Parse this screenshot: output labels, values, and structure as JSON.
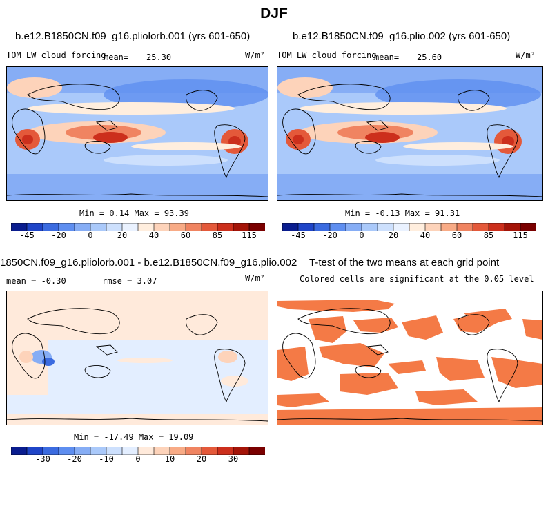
{
  "page_title": "DJF",
  "panels": [
    {
      "title": "b.e12.B1850CN.f09_g16.pliolorb.001 (yrs 601-650)",
      "variable": "TOM LW cloud forcing",
      "mean_label": "mean=",
      "mean_value": "25.30",
      "units": "W/m²",
      "minmax": "Min =   0.14 Max =  93.39"
    },
    {
      "title": "b.e12.B1850CN.f09_g16.plio.002 (yrs 601-650)",
      "variable": "TOM LW cloud forcing",
      "mean_label": "mean=",
      "mean_value": "25.60",
      "units": "W/m²",
      "minmax": "Min =  -0.13 Max =  91.31"
    },
    {
      "title": "1850CN.f09_g16.pliolorb.001 - b.e12.B1850CN.f09_g16.plio.002",
      "mean_text": "mean =  -0.30",
      "rmse_text": "rmse =    3.07",
      "units": "W/m²",
      "minmax": "Min = -17.49 Max =  19.09"
    },
    {
      "title": "T-test of the two means at each grid point",
      "subtitle": "Colored cells are significant at the 0.05 level"
    }
  ],
  "chart_data": [
    {
      "type": "heatmap",
      "title": "b.e12.B1850CN.f09_g16.pliolorb.001 (yrs 601-650)",
      "variable": "TOM LW cloud forcing",
      "units": "W/m2",
      "mean": 25.3,
      "min": 0.14,
      "max": 93.39,
      "colorbar_ticks": [
        "-45",
        "-20",
        "0",
        "20",
        "40",
        "60",
        "85",
        "115"
      ]
    },
    {
      "type": "heatmap",
      "title": "b.e12.B1850CN.f09_g16.plio.002 (yrs 601-650)",
      "variable": "TOM LW cloud forcing",
      "units": "W/m2",
      "mean": 25.6,
      "min": -0.13,
      "max": 91.31,
      "colorbar_ticks": [
        "-45",
        "-20",
        "0",
        "20",
        "40",
        "60",
        "85",
        "115"
      ]
    },
    {
      "type": "heatmap",
      "title": "difference (pliolorb.001 - plio.002)",
      "units": "W/m2",
      "mean": -0.3,
      "rmse": 3.07,
      "min": -17.49,
      "max": 19.09,
      "colorbar_ticks": [
        "-30",
        "-20",
        "-10",
        "0",
        "10",
        "20",
        "30"
      ]
    },
    {
      "type": "heatmap",
      "title": "T-test of the two means at each grid point",
      "legend": "Colored cells are significant at the 0.05 level",
      "significance_level": 0.05
    }
  ],
  "colors": {
    "scale_full": [
      "#0a1d8f",
      "#1f45c8",
      "#3b6be0",
      "#5e8ef0",
      "#86adf5",
      "#aac9fa",
      "#cde0fd",
      "#eaf2ff",
      "#ffeede",
      "#fdd3ba",
      "#f8ab86",
      "#f08461",
      "#e4593a",
      "#cc2f1c",
      "#a41408",
      "#7a0000"
    ],
    "scale_diff": [
      "#0a1d8f",
      "#1f45c8",
      "#3b6be0",
      "#5e8ef0",
      "#86adf5",
      "#aac9fa",
      "#cde0fd",
      "#e3eeff",
      "#ffeadb",
      "#fdd3ba",
      "#f8ab86",
      "#f08461",
      "#e4593a",
      "#cc2f1c",
      "#a41408",
      "#7a0000"
    ],
    "significant": "#f47a46"
  }
}
